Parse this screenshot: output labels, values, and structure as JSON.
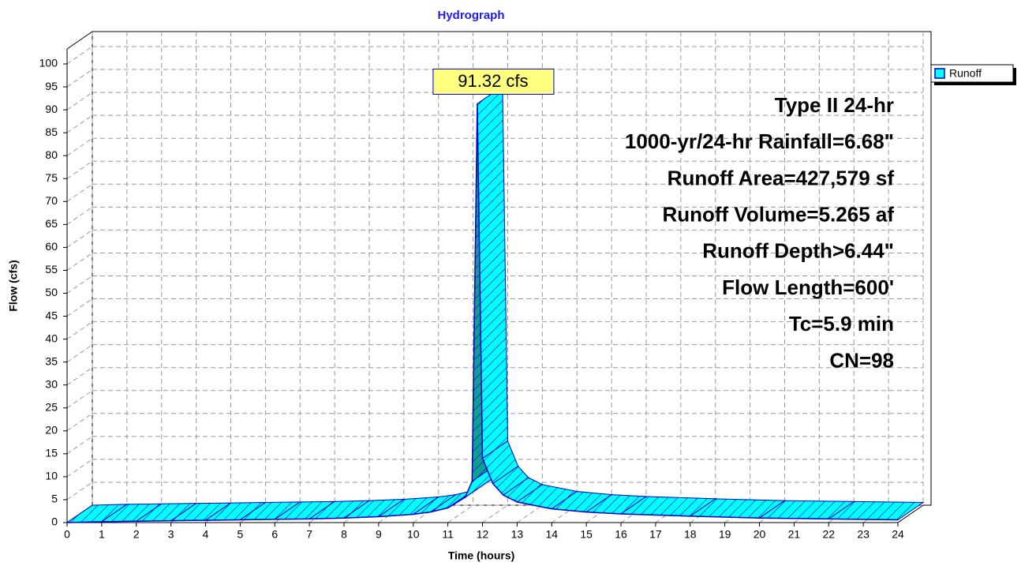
{
  "chart_data": {
    "type": "area3d",
    "title": "Hydrograph",
    "xlabel": "Time  (hours)",
    "ylabel": "Flow  (cfs)",
    "xlim": [
      0,
      24
    ],
    "xticks": [
      0,
      1,
      2,
      3,
      4,
      5,
      6,
      7,
      8,
      9,
      10,
      11,
      12,
      13,
      14,
      15,
      16,
      17,
      18,
      19,
      20,
      21,
      22,
      23,
      24
    ],
    "ylim": [
      0,
      100
    ],
    "yticks": [
      0,
      5,
      10,
      15,
      20,
      25,
      30,
      35,
      40,
      45,
      50,
      55,
      60,
      65,
      70,
      75,
      80,
      85,
      90,
      95,
      100
    ],
    "grid": true,
    "legend": "upper right",
    "series": [
      {
        "name": "Runoff",
        "color": "#00ffff",
        "x": [
          0,
          1,
          2,
          3,
          4,
          5,
          6,
          7,
          8,
          9,
          10,
          10.5,
          11,
          11.5,
          11.7,
          11.85,
          12,
          12.3,
          12.6,
          13,
          14,
          15,
          16,
          18,
          20,
          22,
          24
        ],
        "values": [
          0,
          0.2,
          0.3,
          0.4,
          0.5,
          0.6,
          0.7,
          0.8,
          1.0,
          1.3,
          1.8,
          2.3,
          3.2,
          5.5,
          9,
          91.32,
          14,
          8.5,
          6,
          4.5,
          3,
          2.3,
          1.9,
          1.4,
          1.0,
          0.8,
          0.6
        ]
      }
    ],
    "peak_label": "91.32 cfs",
    "annotations": [
      "Type II 24-hr",
      "1000-yr/24-hr Rainfall=6.68\"",
      "Runoff Area=427,579 sf",
      "Runoff Volume=5.265 af",
      "Runoff Depth>6.44\"",
      "Flow Length=600'",
      "Tc=5.9 min",
      "CN=98"
    ]
  }
}
